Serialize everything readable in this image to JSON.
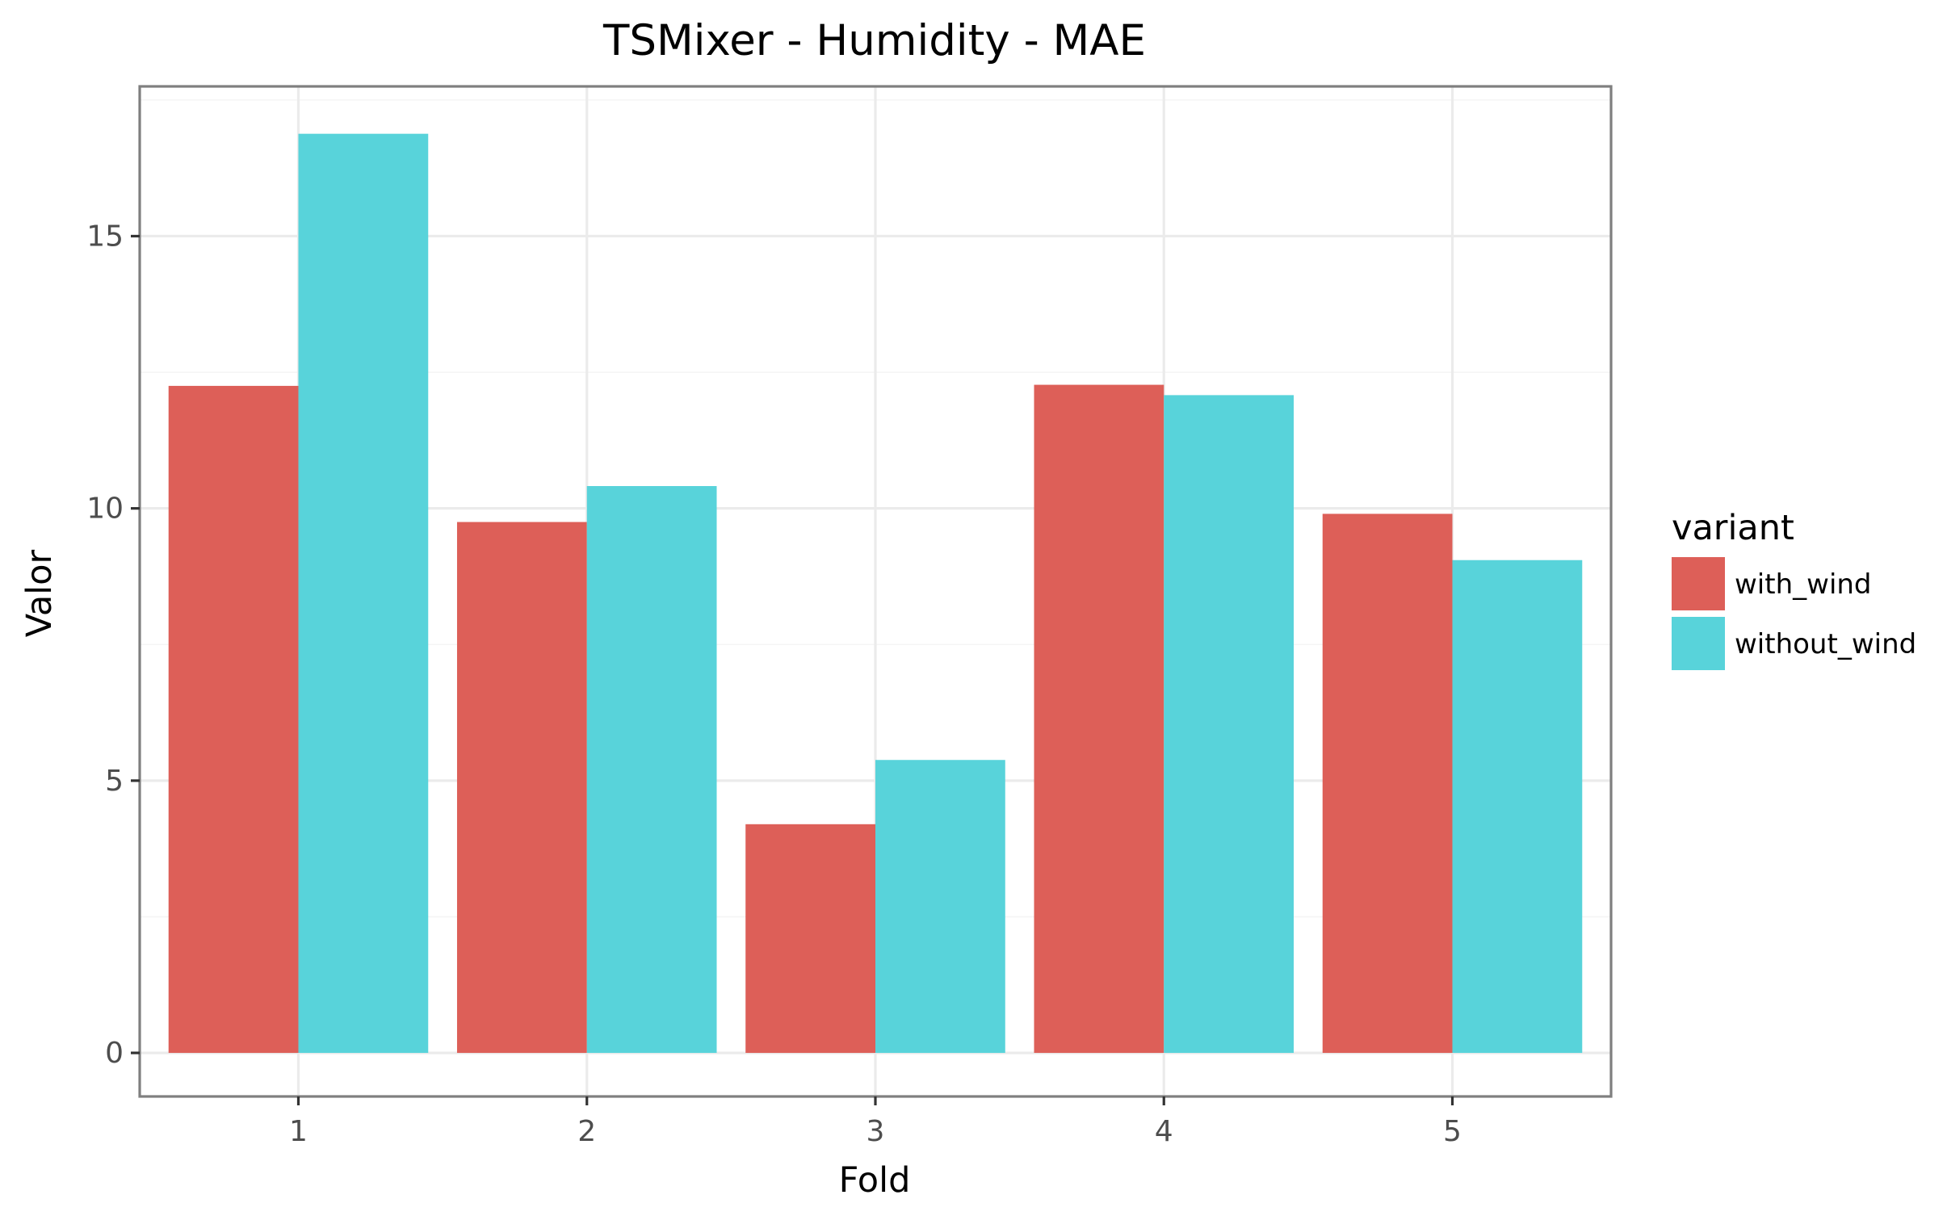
{
  "chart_data": {
    "type": "bar",
    "title": "TSMixer - Humidity - MAE",
    "xlabel": "Fold",
    "ylabel": "Valor",
    "categories": [
      "1",
      "2",
      "3",
      "4",
      "5"
    ],
    "series": [
      {
        "name": "with_wind",
        "color": "#dd5f58",
        "values": [
          12.25,
          9.75,
          4.2,
          12.27,
          9.9
        ]
      },
      {
        "name": "without_wind",
        "color": "#58d3da",
        "values": [
          16.88,
          10.41,
          5.38,
          12.08,
          9.05
        ]
      }
    ],
    "yticks": [
      0,
      5,
      10,
      15
    ],
    "ylim": [
      -0.8,
      17.75
    ],
    "grid": true,
    "legend": {
      "title": "variant",
      "position": "right"
    }
  }
}
